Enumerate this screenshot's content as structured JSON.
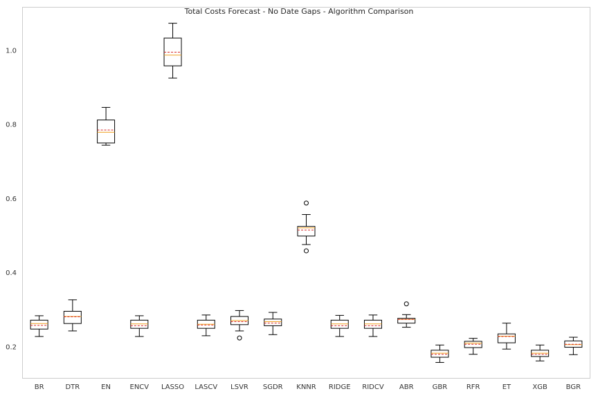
{
  "chart_data": {
    "type": "boxplot",
    "title": "Total Costs Forecast - No Date Gaps - Algorithm Comparison",
    "xlabel": "",
    "ylabel": "",
    "ylim": [
      0.11,
      1.12
    ],
    "yticks": [
      0.2,
      0.4,
      0.6,
      0.8,
      1.0
    ],
    "ytick_labels": [
      "0.2",
      "0.4",
      "0.6",
      "0.8",
      "1.0"
    ],
    "grid": false,
    "legend": "none",
    "categories": [
      "BR",
      "DTR",
      "EN",
      "ENCV",
      "LASSO",
      "LASCV",
      "LSVR",
      "SGDR",
      "KNNR",
      "RIDGE",
      "RIDCV",
      "ABR",
      "GBR",
      "RFR",
      "ET",
      "XGB",
      "BGR"
    ],
    "boxes": [
      {
        "name": "BR",
        "whislo": 0.228,
        "q1": 0.248,
        "median": 0.263,
        "mean": 0.258,
        "q3": 0.272,
        "whishi": 0.284,
        "fliers": []
      },
      {
        "name": "DTR",
        "whislo": 0.243,
        "q1": 0.263,
        "median": 0.282,
        "mean": 0.281,
        "q3": 0.296,
        "whishi": 0.327,
        "fliers": []
      },
      {
        "name": "EN",
        "whislo": 0.744,
        "q1": 0.75,
        "median": 0.779,
        "mean": 0.785,
        "q3": 0.812,
        "whishi": 0.846,
        "fliers": []
      },
      {
        "name": "ENCV",
        "whislo": 0.228,
        "q1": 0.25,
        "median": 0.262,
        "mean": 0.257,
        "q3": 0.272,
        "whishi": 0.284,
        "fliers": []
      },
      {
        "name": "LASSO",
        "whislo": 0.925,
        "q1": 0.958,
        "median": 0.987,
        "mean": 0.995,
        "q3": 1.033,
        "whishi": 1.073,
        "fliers": []
      },
      {
        "name": "LASCV",
        "whislo": 0.23,
        "q1": 0.25,
        "median": 0.261,
        "mean": 0.259,
        "q3": 0.272,
        "whishi": 0.286,
        "fliers": []
      },
      {
        "name": "LSVR",
        "whislo": 0.243,
        "q1": 0.26,
        "median": 0.271,
        "mean": 0.268,
        "q3": 0.282,
        "whishi": 0.298,
        "fliers": [
          0.224
        ]
      },
      {
        "name": "SGDR",
        "whislo": 0.233,
        "q1": 0.257,
        "median": 0.268,
        "mean": 0.264,
        "q3": 0.275,
        "whishi": 0.293,
        "fliers": []
      },
      {
        "name": "KNNR",
        "whislo": 0.476,
        "q1": 0.499,
        "median": 0.521,
        "mean": 0.515,
        "q3": 0.525,
        "whishi": 0.557,
        "fliers": [
          0.588,
          0.459
        ]
      },
      {
        "name": "RIDGE",
        "whislo": 0.228,
        "q1": 0.25,
        "median": 0.262,
        "mean": 0.257,
        "q3": 0.272,
        "whishi": 0.285,
        "fliers": []
      },
      {
        "name": "RIDCV",
        "whislo": 0.228,
        "q1": 0.25,
        "median": 0.262,
        "mean": 0.257,
        "q3": 0.272,
        "whishi": 0.286,
        "fliers": []
      },
      {
        "name": "ABR",
        "whislo": 0.253,
        "q1": 0.264,
        "median": 0.274,
        "mean": 0.274,
        "q3": 0.277,
        "whishi": 0.287,
        "fliers": [
          0.316
        ]
      },
      {
        "name": "GBR",
        "whislo": 0.158,
        "q1": 0.172,
        "median": 0.183,
        "mean": 0.18,
        "q3": 0.191,
        "whishi": 0.205,
        "fliers": []
      },
      {
        "name": "RFR",
        "whislo": 0.18,
        "q1": 0.198,
        "median": 0.21,
        "mean": 0.207,
        "q3": 0.215,
        "whishi": 0.223,
        "fliers": []
      },
      {
        "name": "ET",
        "whislo": 0.194,
        "q1": 0.211,
        "median": 0.229,
        "mean": 0.228,
        "q3": 0.235,
        "whishi": 0.264,
        "fliers": []
      },
      {
        "name": "XGB",
        "whislo": 0.162,
        "q1": 0.174,
        "median": 0.183,
        "mean": 0.18,
        "q3": 0.191,
        "whishi": 0.205,
        "fliers": []
      },
      {
        "name": "BGR",
        "whislo": 0.179,
        "q1": 0.199,
        "median": 0.206,
        "mean": 0.207,
        "q3": 0.216,
        "whishi": 0.226,
        "fliers": []
      }
    ],
    "colors": {
      "box": "#000000",
      "median": "#f0a020",
      "mean": "#d62728",
      "frame": "#cccccc",
      "background": "#ffffff"
    }
  }
}
